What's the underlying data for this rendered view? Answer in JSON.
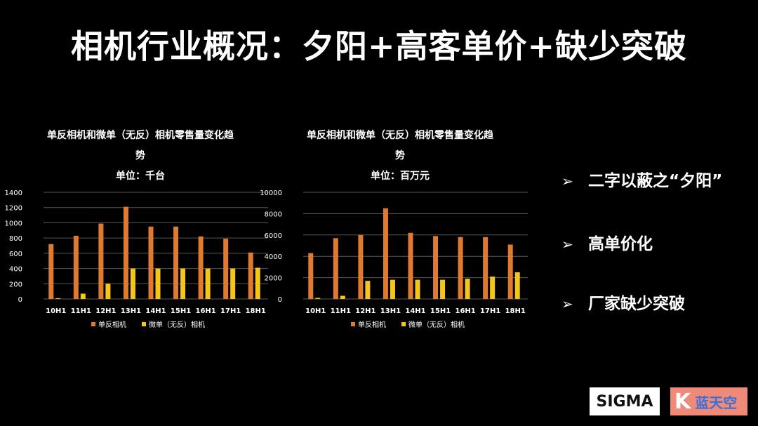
{
  "page": {
    "title": "相机行业概况：夕阳+高客单价+缺少突破",
    "bullets": [
      "二字以蔽之“夕阳”",
      "高单价化",
      "厂家缺少突破"
    ],
    "bullet_marker": "➢",
    "logos": {
      "sigma": "SIGMA",
      "k_letter": "K",
      "k_text": "蓝天空"
    }
  },
  "colors": {
    "dslr": "#E07A2E",
    "mirrorless": "#F5C518",
    "grid": "#595959",
    "text": "#FFFFFF"
  },
  "chart_data": [
    {
      "type": "bar",
      "title_line1": "单反相机和微单（无反）相机零售量变化趋",
      "title_line2": "势",
      "unit": "单位：千台",
      "categories": [
        "10H1",
        "11H1",
        "12H1",
        "13H1",
        "14H1",
        "15H1",
        "16H1",
        "17H1",
        "18H1"
      ],
      "series": [
        {
          "name": "单反相机",
          "values": [
            720,
            830,
            990,
            1210,
            950,
            950,
            820,
            790,
            610
          ]
        },
        {
          "name": "微单（无反）相机",
          "values": [
            10,
            70,
            200,
            400,
            400,
            400,
            400,
            400,
            410
          ]
        }
      ],
      "ylim": [
        0,
        1400
      ],
      "yticks": [
        0,
        200,
        400,
        600,
        800,
        1000,
        1200,
        1400
      ],
      "legend": "bottom"
    },
    {
      "type": "bar",
      "title_line1": "单反相机和微单（无反）相机零售量变化趋",
      "title_line2": "势",
      "unit": "单位：百万元",
      "categories": [
        "10H1",
        "11H1",
        "12H1",
        "13H1",
        "14H1",
        "15H1",
        "16H1",
        "17H1",
        "18H1"
      ],
      "series": [
        {
          "name": "单反相机",
          "values": [
            4300,
            5700,
            6000,
            8500,
            6200,
            5900,
            5800,
            5800,
            5100
          ]
        },
        {
          "name": "微单（无反）相机",
          "values": [
            100,
            300,
            1700,
            1800,
            1800,
            1800,
            1900,
            2100,
            2500
          ]
        }
      ],
      "ylim": [
        0,
        10000
      ],
      "yticks": [
        0,
        2000,
        4000,
        6000,
        8000,
        10000
      ],
      "legend": "bottom"
    }
  ]
}
